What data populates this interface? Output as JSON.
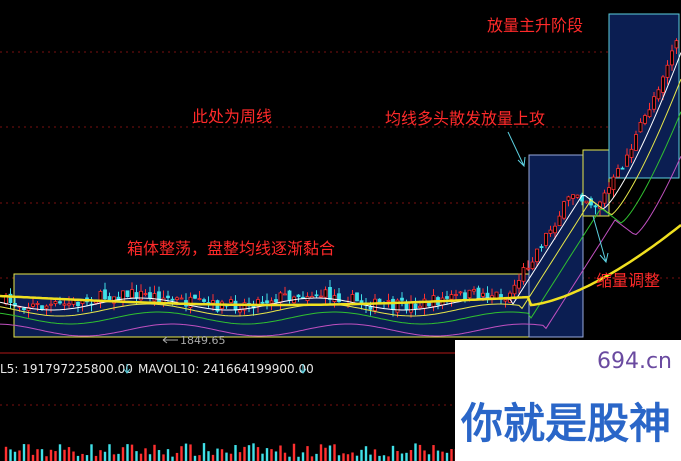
{
  "annotations": [
    "放量主升阶段",
    "此处为周线",
    "均线多头散发放量上攻",
    "箱体整荡，盘整均线逐渐黏合",
    "缩量调整"
  ],
  "price_label": "1849.65",
  "indicators": [
    {
      "label": "L5: 191797225800.00"
    },
    {
      "label": "MAVOL10: 241664199900.00"
    }
  ],
  "watermark": {
    "site": "694.cn",
    "slogan": "你就是股神"
  }
}
